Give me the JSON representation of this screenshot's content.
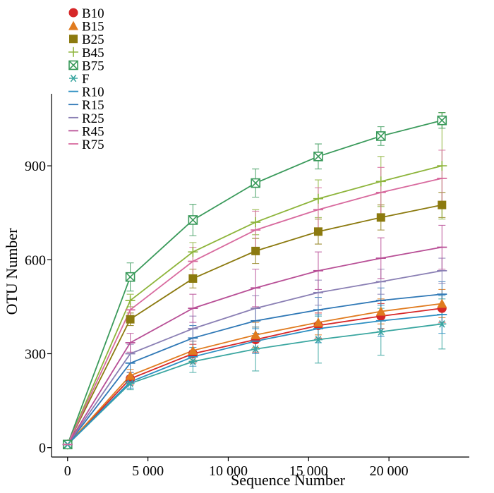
{
  "chart_data": {
    "type": "line",
    "title": "",
    "xlabel": "Sequence Number",
    "ylabel": "OTU Number",
    "xlim": [
      -1000,
      25000
    ],
    "ylim": [
      -30,
      1130
    ],
    "x_ticks": [
      0,
      5000,
      10000,
      15000,
      20000
    ],
    "x_tick_labels": [
      "0",
      "5 000",
      "10 000",
      "15 000",
      "20 000"
    ],
    "y_ticks": [
      0,
      300,
      600,
      900
    ],
    "y_tick_labels": [
      "0",
      "300",
      "600",
      "900"
    ],
    "grid": false,
    "legend_position": "top-left",
    "x": [
      0,
      3900,
      7800,
      11700,
      15600,
      19500,
      23300
    ],
    "series": [
      {
        "name": "B10",
        "color": "#d62728",
        "marker": "circle",
        "values": [
          10,
          220,
          300,
          345,
          390,
          420,
          445
        ],
        "errors": [
          0,
          20,
          30,
          40,
          40,
          40,
          45
        ]
      },
      {
        "name": "B15",
        "color": "#e07b1f",
        "marker": "triangle",
        "values": [
          10,
          230,
          310,
          360,
          400,
          435,
          460
        ],
        "errors": [
          0,
          20,
          30,
          40,
          40,
          40,
          45
        ]
      },
      {
        "name": "B25",
        "color": "#8c7a0f",
        "marker": "square",
        "values": [
          10,
          410,
          540,
          628,
          690,
          735,
          775
        ],
        "errors": [
          0,
          20,
          30,
          40,
          40,
          40,
          40
        ]
      },
      {
        "name": "B45",
        "color": "#8db43a",
        "marker": "plus",
        "values": [
          10,
          470,
          625,
          720,
          795,
          850,
          900
        ],
        "errors": [
          0,
          20,
          30,
          40,
          60,
          80,
          170
        ]
      },
      {
        "name": "B75",
        "color": "#3a9a5b",
        "marker": "square-x",
        "values": [
          10,
          545,
          727,
          845,
          930,
          995,
          1045
        ],
        "errors": [
          0,
          45,
          50,
          45,
          40,
          30,
          25
        ]
      },
      {
        "name": "F",
        "color": "#3aa6a0",
        "marker": "asterisk",
        "values": [
          10,
          205,
          275,
          315,
          345,
          370,
          395
        ],
        "errors": [
          0,
          20,
          35,
          70,
          75,
          75,
          80
        ]
      },
      {
        "name": "R10",
        "color": "#2c8fc2",
        "marker": "dash",
        "values": [
          10,
          210,
          290,
          340,
          380,
          405,
          425
        ],
        "errors": [
          0,
          20,
          30,
          40,
          45,
          50,
          60
        ]
      },
      {
        "name": "R15",
        "color": "#2f78b6",
        "marker": "dash",
        "values": [
          10,
          270,
          350,
          405,
          440,
          470,
          490
        ],
        "errors": [
          0,
          30,
          40,
          40,
          40,
          40,
          40
        ]
      },
      {
        "name": "R25",
        "color": "#8a7fb4",
        "marker": "dash",
        "values": [
          10,
          300,
          380,
          445,
          495,
          530,
          565
        ],
        "errors": [
          0,
          30,
          40,
          40,
          40,
          40,
          40
        ]
      },
      {
        "name": "R45",
        "color": "#b84f96",
        "marker": "dash",
        "values": [
          10,
          335,
          445,
          510,
          565,
          605,
          640
        ],
        "errors": [
          0,
          30,
          45,
          60,
          60,
          65,
          70
        ]
      },
      {
        "name": "R75",
        "color": "#d86a9e",
        "marker": "dash",
        "values": [
          10,
          440,
          595,
          695,
          760,
          815,
          860
        ],
        "errors": [
          0,
          30,
          45,
          60,
          70,
          80,
          90
        ]
      }
    ]
  }
}
